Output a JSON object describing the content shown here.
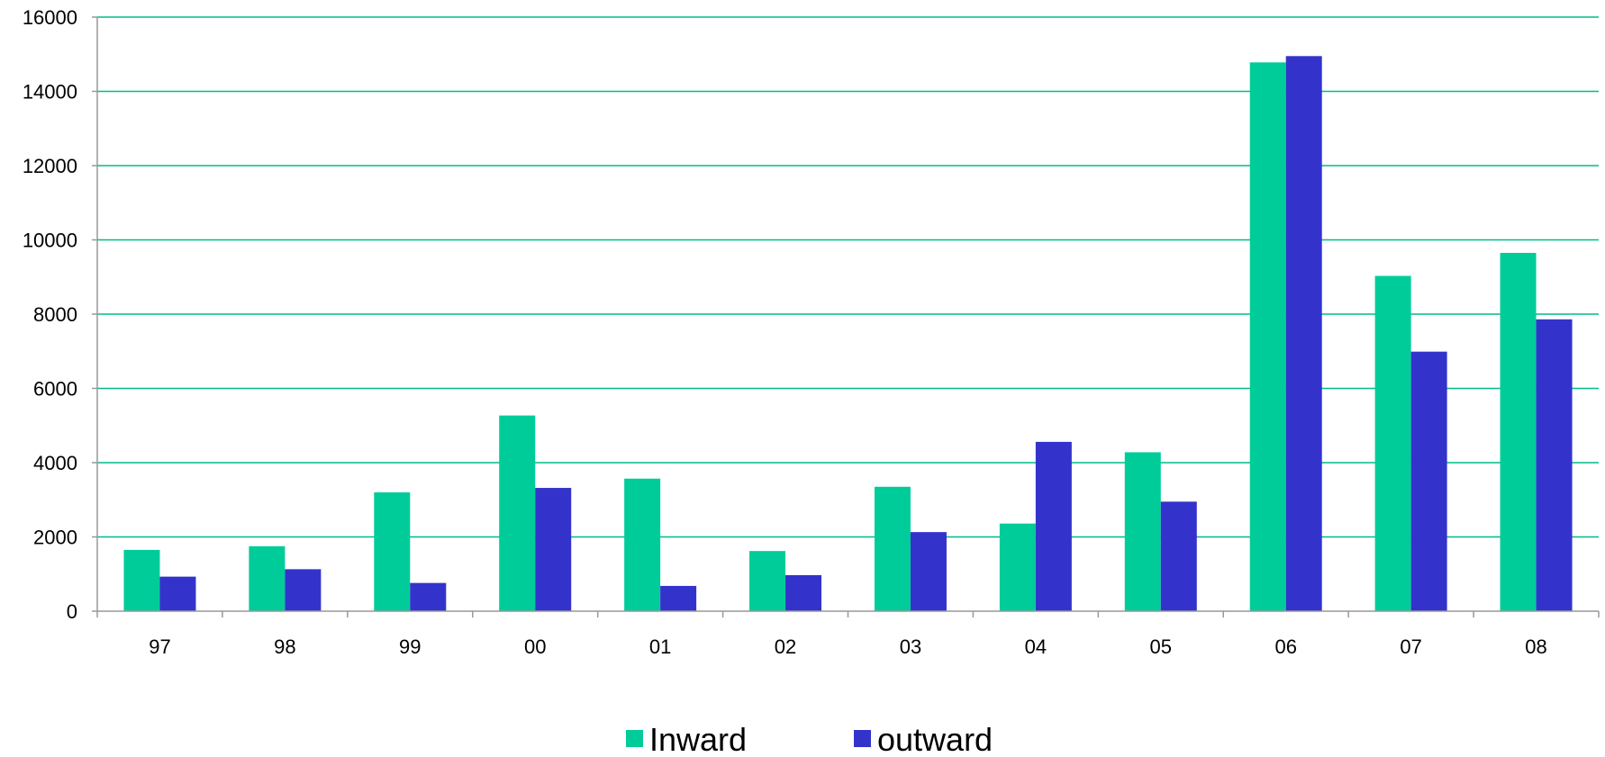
{
  "chart_data": {
    "type": "bar",
    "categories": [
      "97",
      "98",
      "99",
      "00",
      "01",
      "02",
      "03",
      "04",
      "05",
      "06",
      "07",
      "08"
    ],
    "series": [
      {
        "name": "Inward",
        "color": "#00CC99",
        "values": [
          1650,
          1750,
          3200,
          5270,
          3570,
          1620,
          3350,
          2360,
          4280,
          14780,
          9030,
          9650
        ]
      },
      {
        "name": "outward",
        "color": "#3333CC",
        "values": [
          930,
          1130,
          760,
          3320,
          680,
          970,
          2130,
          4560,
          2950,
          14950,
          6990,
          7860
        ]
      }
    ],
    "yticks": [
      "0",
      "2000",
      "4000",
      "6000",
      "8000",
      "10000",
      "12000",
      "14000",
      "16000"
    ],
    "ylim": [
      0,
      16000
    ],
    "ytick_step": 2000,
    "grid": true,
    "grid_color": "#00BB88",
    "axis_color": "#999999",
    "legend_position": "bottom-center",
    "title": "",
    "xlabel": "",
    "ylabel": ""
  }
}
